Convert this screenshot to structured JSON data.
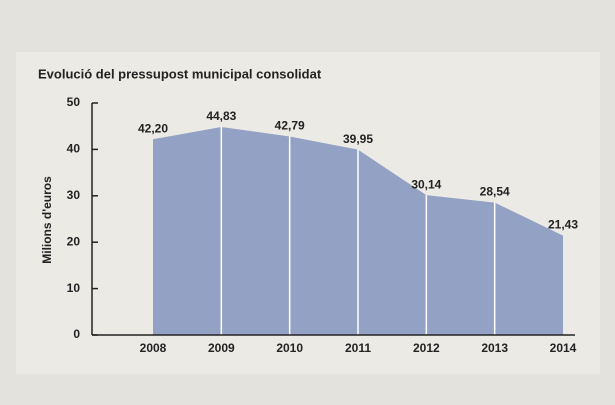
{
  "chart_data": {
    "type": "area",
    "title": "Evolució del pressupost municipal consolidat",
    "y_label": "Milions d'euros",
    "categories": [
      "2008",
      "2009",
      "2010",
      "2011",
      "2012",
      "2013",
      "2014"
    ],
    "values": [
      42.2,
      44.83,
      42.79,
      39.95,
      30.14,
      28.54,
      21.43
    ],
    "value_labels": [
      "42,20",
      "44,83",
      "42,79",
      "39,95",
      "30,14",
      "28,54",
      "21,43"
    ],
    "color": "#92a1c4",
    "ylim": [
      0,
      50
    ],
    "yticks": [
      0,
      10,
      20,
      30,
      40,
      50
    ]
  }
}
